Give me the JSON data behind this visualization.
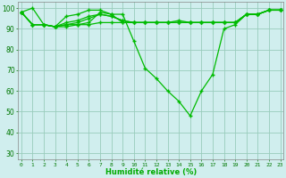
{
  "x": [
    0,
    1,
    2,
    3,
    4,
    5,
    6,
    7,
    8,
    9,
    10,
    11,
    12,
    13,
    14,
    15,
    16,
    17,
    18,
    19,
    20,
    21,
    22,
    23
  ],
  "line1": [
    98,
    100,
    92,
    91,
    96,
    97,
    99,
    99,
    97,
    93,
    93,
    93,
    93,
    93,
    94,
    93,
    93,
    93,
    93,
    93,
    97,
    97,
    99,
    99
  ],
  "line2": [
    98,
    92,
    92,
    91,
    92,
    92,
    93,
    98,
    97,
    97,
    84,
    71,
    66,
    60,
    55,
    48,
    60,
    68,
    90,
    92,
    97,
    97,
    99,
    99
  ],
  "line3": [
    98,
    92,
    92,
    91,
    92,
    93,
    95,
    97,
    96,
    94,
    93,
    93,
    93,
    93,
    93,
    93,
    93,
    93,
    93,
    93,
    97,
    97,
    99,
    99
  ],
  "line4": [
    98,
    92,
    92,
    91,
    93,
    94,
    96,
    97,
    96,
    94,
    93,
    93,
    93,
    93,
    93,
    93,
    93,
    93,
    93,
    93,
    97,
    97,
    99,
    99
  ],
  "line5": [
    98,
    92,
    92,
    91,
    91,
    92,
    92,
    93,
    93,
    93,
    93,
    93,
    93,
    93,
    93,
    93,
    93,
    93,
    93,
    93,
    97,
    97,
    99,
    99
  ],
  "line_color": "#00bb00",
  "bg_color": "#d0eeee",
  "grid_color": "#99ccbb",
  "xlabel": "Humidité relative (%)",
  "xlabel_color": "#00aa00",
  "yticks": [
    30,
    40,
    50,
    60,
    70,
    80,
    90,
    100
  ],
  "xticks": [
    0,
    1,
    2,
    3,
    4,
    5,
    6,
    7,
    8,
    9,
    10,
    11,
    12,
    13,
    14,
    15,
    16,
    17,
    18,
    19,
    20,
    21,
    22,
    23
  ],
  "xlim": [
    -0.3,
    23.3
  ],
  "ylim": [
    27,
    103
  ]
}
